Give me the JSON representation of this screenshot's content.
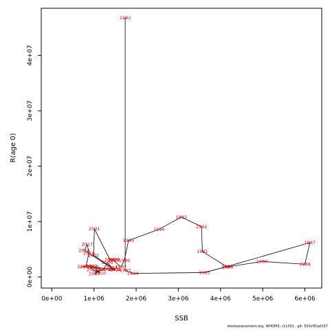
{
  "footer_text": "stockassessment.org, WHOM3, r11332 , git: 503cf91af157",
  "chart_data": {
    "type": "line",
    "xlabel": "SSB",
    "ylabel": "R(age 0)",
    "xlim": [
      -250000,
      6400000
    ],
    "ylim": [
      -2000000,
      48500000
    ],
    "x_ticks": [
      0,
      1000000,
      2000000,
      3000000,
      4000000,
      5000000,
      6000000
    ],
    "x_tick_labels": [
      "0e+00",
      "1e+06",
      "2e+06",
      "3e+06",
      "4e+06",
      "5e+06",
      "6e+06"
    ],
    "y_ticks": [
      0,
      10000000,
      20000000,
      30000000,
      40000000
    ],
    "y_tick_labels": [
      "0e+00",
      "1e+07",
      "2e+07",
      "3e+07",
      "4e+07"
    ],
    "grid": false,
    "line_color": "#000000",
    "label_color": "#e00000",
    "series": [
      {
        "points": [
          {
            "year": "1982",
            "x": 1740000,
            "y": 46800000
          },
          {
            "year": "1983",
            "x": 1740000,
            "y": 1200000
          },
          {
            "year": "1984",
            "x": 1920000,
            "y": 650000
          },
          {
            "year": "1985",
            "x": 3620000,
            "y": 800000
          },
          {
            "year": "1986",
            "x": 4160000,
            "y": 1900000
          },
          {
            "year": "1987",
            "x": 6120000,
            "y": 6200000
          },
          {
            "year": "1988",
            "x": 6000000,
            "y": 2300000
          },
          {
            "year": "1989",
            "x": 4980000,
            "y": 2800000
          },
          {
            "year": "1990",
            "x": 4160000,
            "y": 1800000
          },
          {
            "year": "1991",
            "x": 3570000,
            "y": 4600000
          },
          {
            "year": "1992",
            "x": 3550000,
            "y": 9100000
          },
          {
            "year": "1993",
            "x": 3070000,
            "y": 10800000
          },
          {
            "year": "1994",
            "x": 2540000,
            "y": 8600000
          },
          {
            "year": "1995",
            "x": 1820000,
            "y": 6600000
          },
          {
            "year": "1996",
            "x": 1720000,
            "y": 3000000
          },
          {
            "year": "1997",
            "x": 1640000,
            "y": 1800000
          },
          {
            "year": "1998",
            "x": 1460000,
            "y": 3000000
          },
          {
            "year": "1999",
            "x": 1480000,
            "y": 3200000
          },
          {
            "year": "2000",
            "x": 1380000,
            "y": 3100000
          },
          {
            "year": "2001",
            "x": 1010000,
            "y": 8700000
          },
          {
            "year": "2002",
            "x": 990000,
            "y": 3900000
          },
          {
            "year": "2003",
            "x": 1490000,
            "y": 1400000
          },
          {
            "year": "2004",
            "x": 1420000,
            "y": 1700000
          },
          {
            "year": "2005",
            "x": 1320000,
            "y": 2600000
          },
          {
            "year": "2006",
            "x": 1230000,
            "y": 1400000
          },
          {
            "year": "2007",
            "x": 1010000,
            "y": 600000
          },
          {
            "year": "2008",
            "x": 1150000,
            "y": 1400000
          },
          {
            "year": "2009",
            "x": 980000,
            "y": 1800000
          },
          {
            "year": "2010",
            "x": 1150000,
            "y": 700000
          },
          {
            "year": "2011",
            "x": 960000,
            "y": 1300000
          },
          {
            "year": "2012",
            "x": 940000,
            "y": 2000000
          },
          {
            "year": "2013",
            "x": 880000,
            "y": 1900000
          },
          {
            "year": "2014",
            "x": 1510000,
            "y": 1300000
          },
          {
            "year": "2015",
            "x": 1470000,
            "y": 1400000
          },
          {
            "year": "2016",
            "x": 770000,
            "y": 4800000
          },
          {
            "year": "2017",
            "x": 840000,
            "y": 5900000
          },
          {
            "year": "2018",
            "x": 880000,
            "y": 4300000
          },
          {
            "year": "2019",
            "x": 810000,
            "y": 1900000
          },
          {
            "year": "2020",
            "x": 740000,
            "y": 1900000
          }
        ]
      }
    ]
  }
}
